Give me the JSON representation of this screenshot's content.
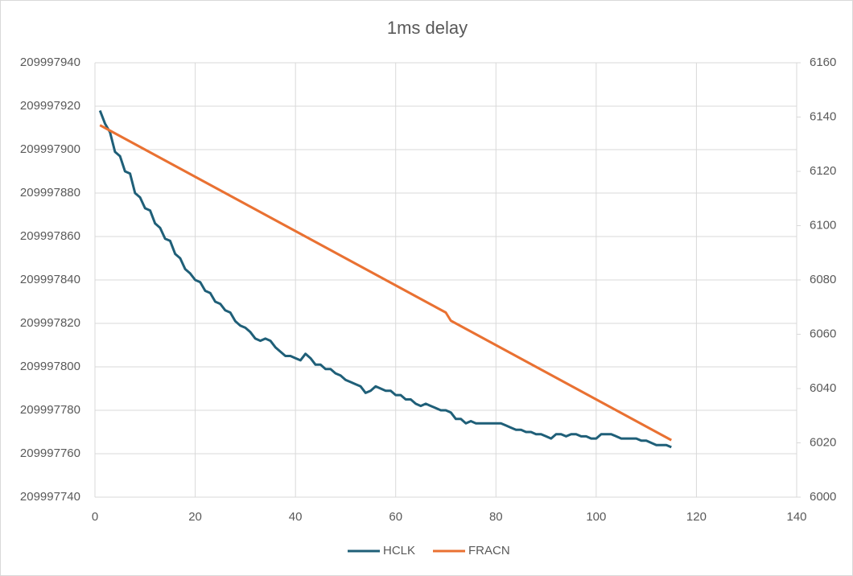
{
  "chart_data": {
    "type": "line",
    "title": "1ms delay",
    "x": [
      1,
      2,
      3,
      4,
      5,
      6,
      7,
      8,
      9,
      10,
      11,
      12,
      13,
      14,
      15,
      16,
      17,
      18,
      19,
      20,
      21,
      22,
      23,
      24,
      25,
      26,
      27,
      28,
      29,
      30,
      31,
      32,
      33,
      34,
      35,
      36,
      37,
      38,
      39,
      40,
      41,
      42,
      43,
      44,
      45,
      46,
      47,
      48,
      49,
      50,
      51,
      52,
      53,
      54,
      55,
      56,
      57,
      58,
      59,
      60,
      61,
      62,
      63,
      64,
      65,
      66,
      67,
      68,
      69,
      70,
      71,
      72,
      73,
      74,
      75,
      76,
      77,
      78,
      79,
      80,
      81,
      82,
      83,
      84,
      85,
      86,
      87,
      88,
      89,
      90,
      91,
      92,
      93,
      94,
      95,
      96,
      97,
      98,
      99,
      100,
      101,
      102,
      103,
      104,
      105,
      106,
      107,
      108,
      109,
      110,
      111,
      112,
      113,
      114,
      115
    ],
    "series": [
      {
        "name": "HCLK",
        "color": "#1f5f78",
        "axis": "y",
        "values": [
          209997918,
          209997912,
          209997908,
          209997899,
          209997897,
          209997890,
          209997889,
          209997880,
          209997878,
          209997873,
          209997872,
          209997866,
          209997864,
          209997859,
          209997858,
          209997852,
          209997850,
          209997845,
          209997843,
          209997840,
          209997839,
          209997835,
          209997834,
          209997830,
          209997829,
          209997826,
          209997825,
          209997821,
          209997819,
          209997818,
          209997816,
          209997813,
          209997812,
          209997813,
          209997812,
          209997809,
          209997807,
          209997805,
          209997805,
          209997804,
          209997803,
          209997806,
          209997804,
          209997801,
          209997801,
          209997799,
          209997799,
          209997797,
          209997796,
          209997794,
          209997793,
          209997792,
          209997791,
          209997788,
          209997789,
          209997791,
          209997790,
          209997789,
          209997789,
          209997787,
          209997787,
          209997785,
          209997785,
          209997783,
          209997782,
          209997783,
          209997782,
          209997781,
          209997780,
          209997780,
          209997779,
          209997776,
          209997776,
          209997774,
          209997775,
          209997774,
          209997774,
          209997774,
          209997774,
          209997774,
          209997774,
          209997773,
          209997772,
          209997771,
          209997771,
          209997770,
          209997770,
          209997769,
          209997769,
          209997768,
          209997767,
          209997769,
          209997769,
          209997768,
          209997769,
          209997769,
          209997768,
          209997768,
          209997767,
          209997767,
          209997769,
          209997769,
          209997769,
          209997768,
          209997767,
          209997767,
          209997767,
          209997767,
          209997766,
          209997766,
          209997765,
          209997764,
          209997764,
          209997764,
          209997763
        ]
      },
      {
        "name": "FRACN",
        "color": "#e97132",
        "axis": "y2",
        "values": [
          6137,
          6136,
          6135,
          6134,
          6133,
          6132,
          6131,
          6130,
          6129,
          6128,
          6127,
          6126,
          6125,
          6124,
          6123,
          6122,
          6121,
          6120,
          6119,
          6118,
          6117,
          6116,
          6115,
          6114,
          6113,
          6112,
          6111,
          6110,
          6109,
          6108,
          6107,
          6106,
          6105,
          6104,
          6103,
          6102,
          6101,
          6100,
          6099,
          6098,
          6097,
          6096,
          6095,
          6094,
          6093,
          6092,
          6091,
          6090,
          6089,
          6088,
          6087,
          6086,
          6085,
          6084,
          6083,
          6082,
          6081,
          6080,
          6079,
          6078,
          6077,
          6076,
          6075,
          6074,
          6073,
          6072,
          6071,
          6070,
          6069,
          6068,
          6065,
          6064,
          6063,
          6062,
          6061,
          6060,
          6059,
          6058,
          6057,
          6056,
          6055,
          6054,
          6053,
          6052,
          6051,
          6050,
          6049,
          6048,
          6047,
          6046,
          6045,
          6044,
          6043,
          6042,
          6041,
          6040,
          6039,
          6038,
          6037,
          6036,
          6035,
          6034,
          6033,
          6032,
          6031,
          6030,
          6029,
          6028,
          6027,
          6026,
          6025,
          6024,
          6023,
          6022,
          6021
        ]
      }
    ],
    "xlim": [
      0,
      140
    ],
    "xticks": [
      0,
      20,
      40,
      60,
      80,
      100,
      120,
      140
    ],
    "ylim": [
      209997740,
      209997940
    ],
    "yticks": [
      209997740,
      209997760,
      209997780,
      209997800,
      209997820,
      209997840,
      209997860,
      209997880,
      209997900,
      209997920,
      209997940
    ],
    "y2lim": [
      6000,
      6160
    ],
    "y2ticks": [
      6000,
      6020,
      6040,
      6060,
      6080,
      6100,
      6120,
      6140,
      6160
    ],
    "grid": true,
    "legend": "bottom"
  }
}
